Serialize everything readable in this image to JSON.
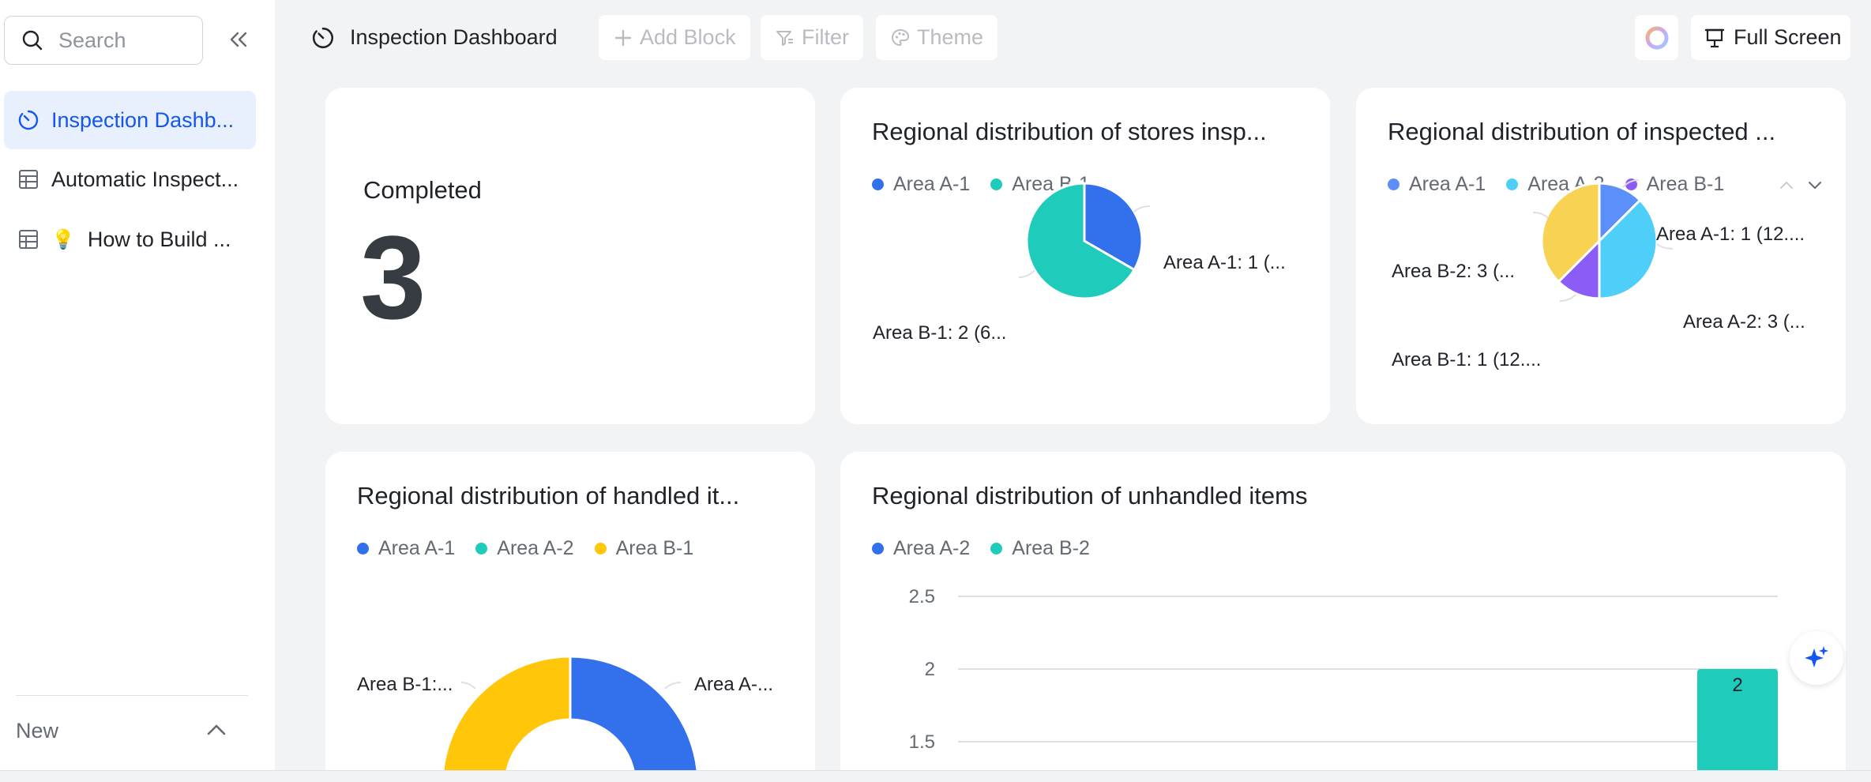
{
  "sidebar": {
    "search_placeholder": "Search",
    "items": [
      {
        "label": "Inspection Dashb...",
        "icon": "dashboard-icon",
        "active": true
      },
      {
        "label": "Automatic Inspect...",
        "icon": "table-icon",
        "active": false
      },
      {
        "label": "How to Build ...",
        "icon": "table-icon",
        "emoji": "💡",
        "active": false
      }
    ],
    "new_label": "New"
  },
  "toolbar": {
    "title": "Inspection Dashboard",
    "add_block": "Add Block",
    "filter": "Filter",
    "theme": "Theme",
    "full_screen": "Full Screen"
  },
  "colors": {
    "blue": "#3370eb",
    "teal": "#1fcbbb",
    "sky": "#4dcffa",
    "purple": "#8b5cf6",
    "yellow": "#f8d253",
    "gold": "#ffc60a",
    "accent": "#1456f0"
  },
  "metric_card": {
    "label": "Completed",
    "value": "3"
  },
  "charts": {
    "stores": {
      "title": "Regional distribution of stores insp...",
      "legend": [
        "Area A-1",
        "Area B-1"
      ],
      "labels": [
        "Area A-1: 1 (...",
        "Area B-1: 2 (6..."
      ]
    },
    "inspected": {
      "title": "Regional distribution of inspected ...",
      "legend": [
        "Area A-1",
        "Area A-2",
        "Area B-1"
      ],
      "labels": [
        "Area A-1: 1 (12....",
        "Area A-2: 3 (...",
        "Area B-1: 1 (12....",
        "Area B-2: 3 (..."
      ]
    },
    "handled": {
      "title": "Regional distribution of handled it...",
      "legend": [
        "Area A-1",
        "Area A-2",
        "Area B-1"
      ],
      "labels": [
        "Area A-...",
        "Area B-1:..."
      ]
    },
    "unhandled": {
      "title": "Regional distribution of unhandled items",
      "legend": [
        "Area A-2",
        "Area B-2"
      ],
      "y_ticks": [
        "2.5",
        "2",
        "1.5"
      ],
      "bar_label": "2"
    }
  },
  "chart_data": [
    {
      "type": "pie",
      "title": "Regional distribution of stores insp...",
      "categories": [
        "Area A-1",
        "Area B-1"
      ],
      "values": [
        1,
        2
      ],
      "colors": [
        "#3370eb",
        "#1fcbbb"
      ]
    },
    {
      "type": "pie",
      "title": "Regional distribution of inspected ...",
      "categories": [
        "Area A-1",
        "Area A-2",
        "Area B-1",
        "Area B-2"
      ],
      "values": [
        1,
        3,
        1,
        3
      ],
      "colors": [
        "#5b8ff9",
        "#4dcffa",
        "#8b5cf6",
        "#f8d253"
      ]
    },
    {
      "type": "pie",
      "title": "Regional distribution of handled it...",
      "categories": [
        "Area A-1",
        "Area B-1"
      ],
      "values": [
        1,
        1
      ],
      "colors": [
        "#3370eb",
        "#ffc60a"
      ]
    },
    {
      "type": "bar",
      "title": "Regional distribution of unhandled items",
      "categories": [
        "Area B-2"
      ],
      "values": [
        2
      ],
      "ylim_visible": [
        1.5,
        2.5
      ],
      "grid": true,
      "colors": [
        "#1fcbbb"
      ]
    }
  ]
}
